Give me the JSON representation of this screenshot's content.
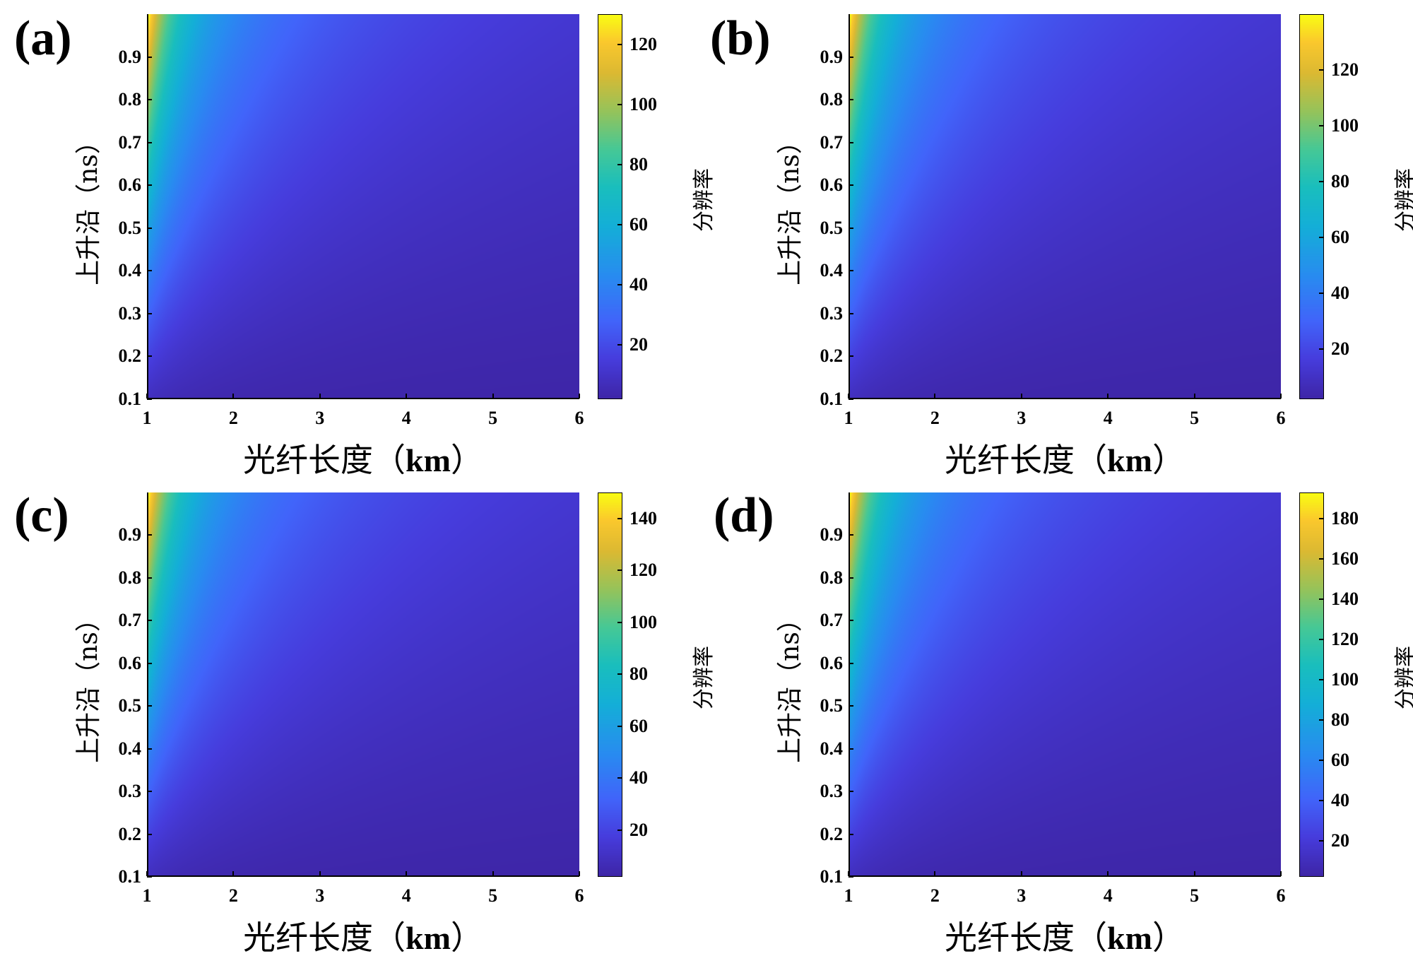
{
  "figure": {
    "x_label_prefix": "光纤长度（",
    "x_label_unit": "km",
    "x_label_suffix": "）",
    "y_label": "上升沿（ns）",
    "colorbar_label": "分辨率"
  },
  "chart_data": [
    {
      "type": "heatmap",
      "panel": "(a)",
      "xlabel": "光纤长度（km）",
      "ylabel": "上升沿（ns）",
      "colorbar_label": "分辨率",
      "x_ticks": [
        "1",
        "2",
        "3",
        "4",
        "5",
        "6"
      ],
      "y_ticks": [
        "0.1",
        "0.2",
        "0.3",
        "0.4",
        "0.5",
        "0.6",
        "0.7",
        "0.8",
        "0.9"
      ],
      "xlim": [
        1,
        6
      ],
      "ylim": [
        0.1,
        1.0
      ],
      "clim": [
        2,
        130
      ],
      "colorbar_ticks": [
        "20",
        "40",
        "60",
        "80",
        "100",
        "120"
      ],
      "colormap": "parula",
      "max_value": 130,
      "min_value": 2
    },
    {
      "type": "heatmap",
      "panel": "(b)",
      "xlabel": "光纤长度（km）",
      "ylabel": "上升沿（ns）",
      "colorbar_label": "分辨率",
      "x_ticks": [
        "1",
        "2",
        "3",
        "4",
        "5",
        "6"
      ],
      "y_ticks": [
        "0.1",
        "0.2",
        "0.3",
        "0.4",
        "0.5",
        "0.6",
        "0.7",
        "0.8",
        "0.9"
      ],
      "xlim": [
        1,
        6
      ],
      "ylim": [
        0.1,
        1.0
      ],
      "clim": [
        2,
        140
      ],
      "colorbar_ticks": [
        "20",
        "40",
        "60",
        "80",
        "100",
        "120"
      ],
      "colormap": "parula",
      "max_value": 140,
      "min_value": 2
    },
    {
      "type": "heatmap",
      "panel": "(c)",
      "xlabel": "光纤长度（km）",
      "ylabel": "上升沿（ns）",
      "colorbar_label": "分辨率",
      "x_ticks": [
        "1",
        "2",
        "3",
        "4",
        "5",
        "6"
      ],
      "y_ticks": [
        "0.1",
        "0.2",
        "0.3",
        "0.4",
        "0.5",
        "0.6",
        "0.7",
        "0.8",
        "0.9"
      ],
      "xlim": [
        1,
        6
      ],
      "ylim": [
        0.1,
        1.0
      ],
      "clim": [
        2,
        150
      ],
      "colorbar_ticks": [
        "20",
        "40",
        "60",
        "80",
        "100",
        "120",
        "140"
      ],
      "colormap": "parula",
      "max_value": 150,
      "min_value": 2
    },
    {
      "type": "heatmap",
      "panel": "(d)",
      "xlabel": "光纤长度（km）",
      "ylabel": "上升沿（ns）",
      "colorbar_label": "分辨率",
      "x_ticks": [
        "1",
        "2",
        "3",
        "4",
        "5",
        "6"
      ],
      "y_ticks": [
        "0.1",
        "0.2",
        "0.3",
        "0.4",
        "0.5",
        "0.6",
        "0.7",
        "0.8",
        "0.9"
      ],
      "xlim": [
        1,
        6
      ],
      "ylim": [
        0.1,
        1.0
      ],
      "clim": [
        2,
        193
      ],
      "colorbar_ticks": [
        "20",
        "40",
        "60",
        "80",
        "100",
        "120",
        "140",
        "160",
        "180"
      ],
      "colormap": "parula",
      "max_value": 193,
      "min_value": 2
    }
  ]
}
